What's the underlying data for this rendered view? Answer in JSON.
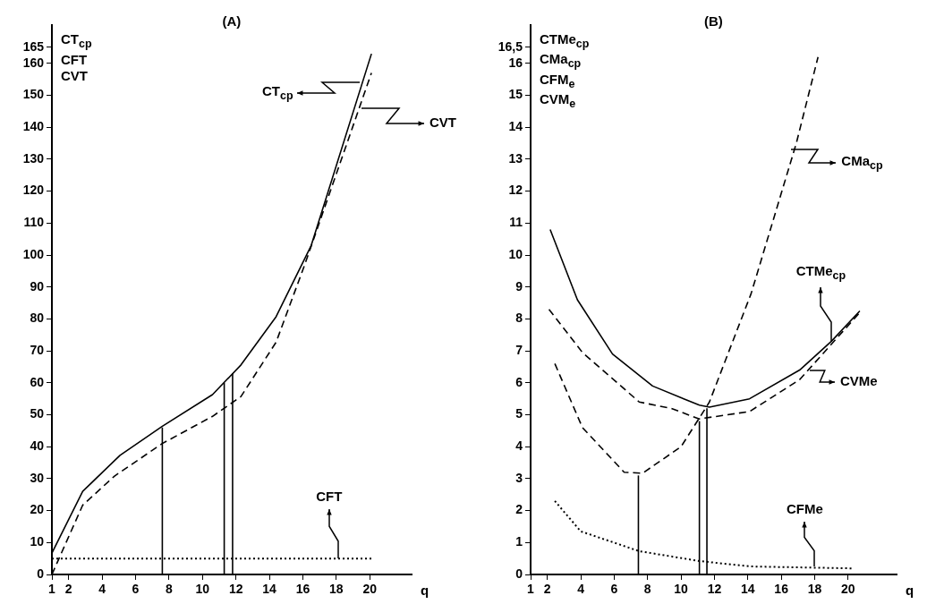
{
  "chart_data": [
    {
      "type": "line",
      "title": "(A)",
      "xlabel": "q",
      "ylabel": "CT$_{cp}$\nCFT\nCVT",
      "xlim": [
        1,
        22.5
      ],
      "xticks": [
        1,
        2,
        4,
        6,
        8,
        10,
        12,
        14,
        16,
        18,
        20
      ],
      "ylim": [
        0,
        172
      ],
      "yticks": [
        0,
        10,
        20,
        30,
        40,
        50,
        60,
        70,
        80,
        90,
        100,
        110,
        120,
        130,
        140,
        150,
        160,
        165
      ],
      "grid": false,
      "legend": false,
      "marker": "none",
      "series": [
        {
          "color": "#000000",
          "line_style": "solid",
          "x": [
            1,
            2.84,
            5.07,
            7.6,
            10.6,
            12.3,
            14.4,
            16.5,
            20.1
          ],
          "values": [
            6.7,
            26,
            37.3,
            46.4,
            56.3,
            65.6,
            80.7,
            103,
            163
          ]
        },
        {
          "color": "#000000",
          "line_style": "dashed",
          "x": [
            1,
            2.84,
            4.74,
            7.6,
            10.6,
            12.3,
            14.4,
            16.1,
            20.1
          ],
          "values": [
            0,
            21.7,
            30.8,
            41,
            49.5,
            55.7,
            72.7,
            96.8,
            157
          ]
        },
        {
          "color": "#000000",
          "line_style": "dotted",
          "x": [
            1,
            20.2
          ],
          "values": [
            5,
            5
          ]
        },
        {
          "color": "#000000",
          "line_style": "solid",
          "x": [
            7.6,
            7.6
          ],
          "values": [
            0,
            46
          ]
        },
        {
          "color": "#000000",
          "line_style": "solid",
          "x": [
            11.3,
            11.3
          ],
          "values": [
            0,
            60
          ]
        },
        {
          "color": "#000000",
          "line_style": "solid",
          "x": [
            11.8,
            11.8
          ],
          "values": [
            0,
            63
          ]
        }
      ],
      "annotations": [
        {
          "text": "CT$_{cp}$",
          "x": 19.4,
          "y": 154
        },
        {
          "text": "CVT",
          "x": 19.5,
          "y": 146
        },
        {
          "text": "CFT",
          "x": 18.1,
          "y": 5
        }
      ]
    },
    {
      "type": "line",
      "title": "(B)",
      "xlabel": "q",
      "ylabel": "CTMe$_{cp}$\nCMa$_{cp}$\nCFM$_{e}$\nCVM$_{e}$",
      "xlim": [
        1,
        22.9
      ],
      "xticks": [
        1,
        2,
        4,
        6,
        8,
        10,
        12,
        14,
        16,
        18,
        20
      ],
      "ylim": [
        0,
        17.2
      ],
      "yticks": [
        0,
        1,
        2,
        3,
        4,
        5,
        6,
        7,
        8,
        9,
        10,
        11,
        12,
        13,
        14,
        15,
        16,
        {
          "value": 16.5,
          "label": "16,5"
        }
      ],
      "grid": false,
      "legend": false,
      "marker": "none",
      "series": [
        {
          "color": "#000000",
          "line_style": "solid",
          "x": [
            2.17,
            3.8,
            5.9,
            8.3,
            11.1,
            11.7,
            14.1,
            17.1,
            19,
            20.7
          ],
          "values": [
            10.8,
            8.6,
            6.9,
            5.9,
            5.3,
            5.24,
            5.5,
            6.4,
            7.3,
            8.25
          ]
        },
        {
          "color": "#000000",
          "line_style": "dashed",
          "x": [
            2.1,
            4.1,
            7.5,
            9.4,
            11.1,
            14.1,
            17.1,
            20.7
          ],
          "values": [
            8.3,
            6.95,
            5.4,
            5.2,
            4.87,
            5.1,
            6.1,
            8.2
          ]
        },
        {
          "color": "#000000",
          "line_style": "dashed",
          "x": [
            2.45,
            4.1,
            6.6,
            7.7,
            10,
            11.1,
            11.7,
            14.2,
            16.9,
            18.2
          ],
          "values": [
            6.6,
            4.6,
            3.2,
            3.17,
            4,
            4.9,
            5.4,
            8.8,
            13.5,
            16.2
          ]
        },
        {
          "color": "#000000",
          "line_style": "dotted",
          "x": [
            2.45,
            4,
            7.5,
            11.1,
            14.2,
            20.3
          ],
          "values": [
            2.3,
            1.35,
            0.73,
            0.42,
            0.25,
            0.19
          ]
        },
        {
          "color": "#000000",
          "line_style": "solid",
          "x": [
            7.45,
            7.45
          ],
          "values": [
            0,
            3.1
          ]
        },
        {
          "color": "#000000",
          "line_style": "solid",
          "x": [
            11.1,
            11.1
          ],
          "values": [
            0,
            4.8
          ]
        },
        {
          "color": "#000000",
          "line_style": "solid",
          "x": [
            11.55,
            11.55
          ],
          "values": [
            0,
            5.2
          ]
        }
      ],
      "annotations": [
        {
          "text": "CMa$_{cp}$",
          "x": 16.6,
          "y": 13.3
        },
        {
          "text": "CTMe$_{cp}$",
          "x": 19,
          "y": 7.3
        },
        {
          "text": "CVMe",
          "x": 17.7,
          "y": 6.4
        },
        {
          "text": "CFMe",
          "x": 18,
          "y": 0.25
        }
      ]
    }
  ]
}
